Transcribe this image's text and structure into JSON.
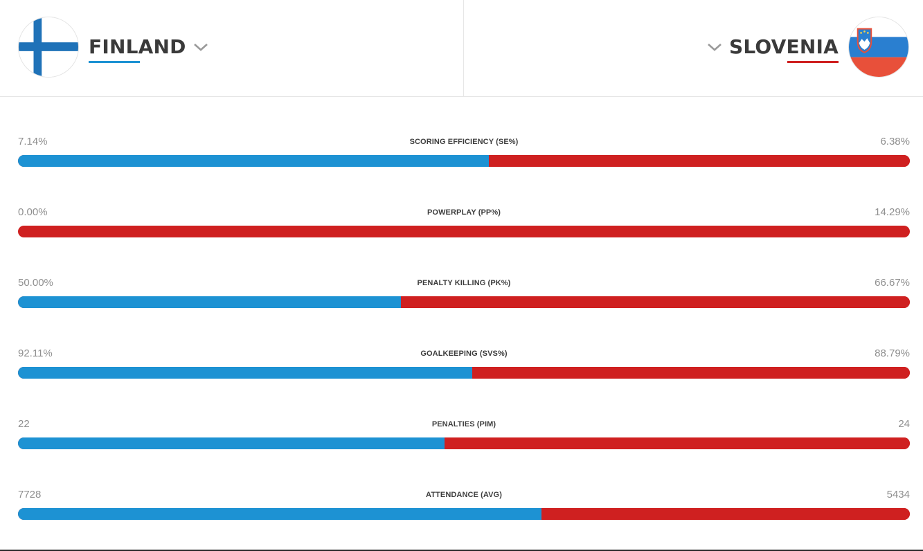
{
  "home": {
    "name": "FINLAND",
    "flag_icon": "finland-flag-icon",
    "color": "#1d92d3"
  },
  "away": {
    "name": "SLOVENIA",
    "flag_icon": "slovenia-flag-icon",
    "color": "#cf2020"
  },
  "stats": [
    {
      "label": "SCORING EFFICIENCY (SE%)",
      "home": "7.14%",
      "away": "6.38%",
      "home_share": 0.528
    },
    {
      "label": "POWERPLAY (PP%)",
      "home": "0.00%",
      "away": "14.29%",
      "home_share": 0.0
    },
    {
      "label": "PENALTY KILLING (PK%)",
      "home": "50.00%",
      "away": "66.67%",
      "home_share": 0.429
    },
    {
      "label": "GOALKEEPING (SVS%)",
      "home": "92.11%",
      "away": "88.79%",
      "home_share": 0.509
    },
    {
      "label": "PENALTIES (PIM)",
      "home": "22",
      "away": "24",
      "home_share": 0.478
    },
    {
      "label": "ATTENDANCE (AVG)",
      "home": "7728",
      "away": "5434",
      "home_share": 0.587
    }
  ]
}
